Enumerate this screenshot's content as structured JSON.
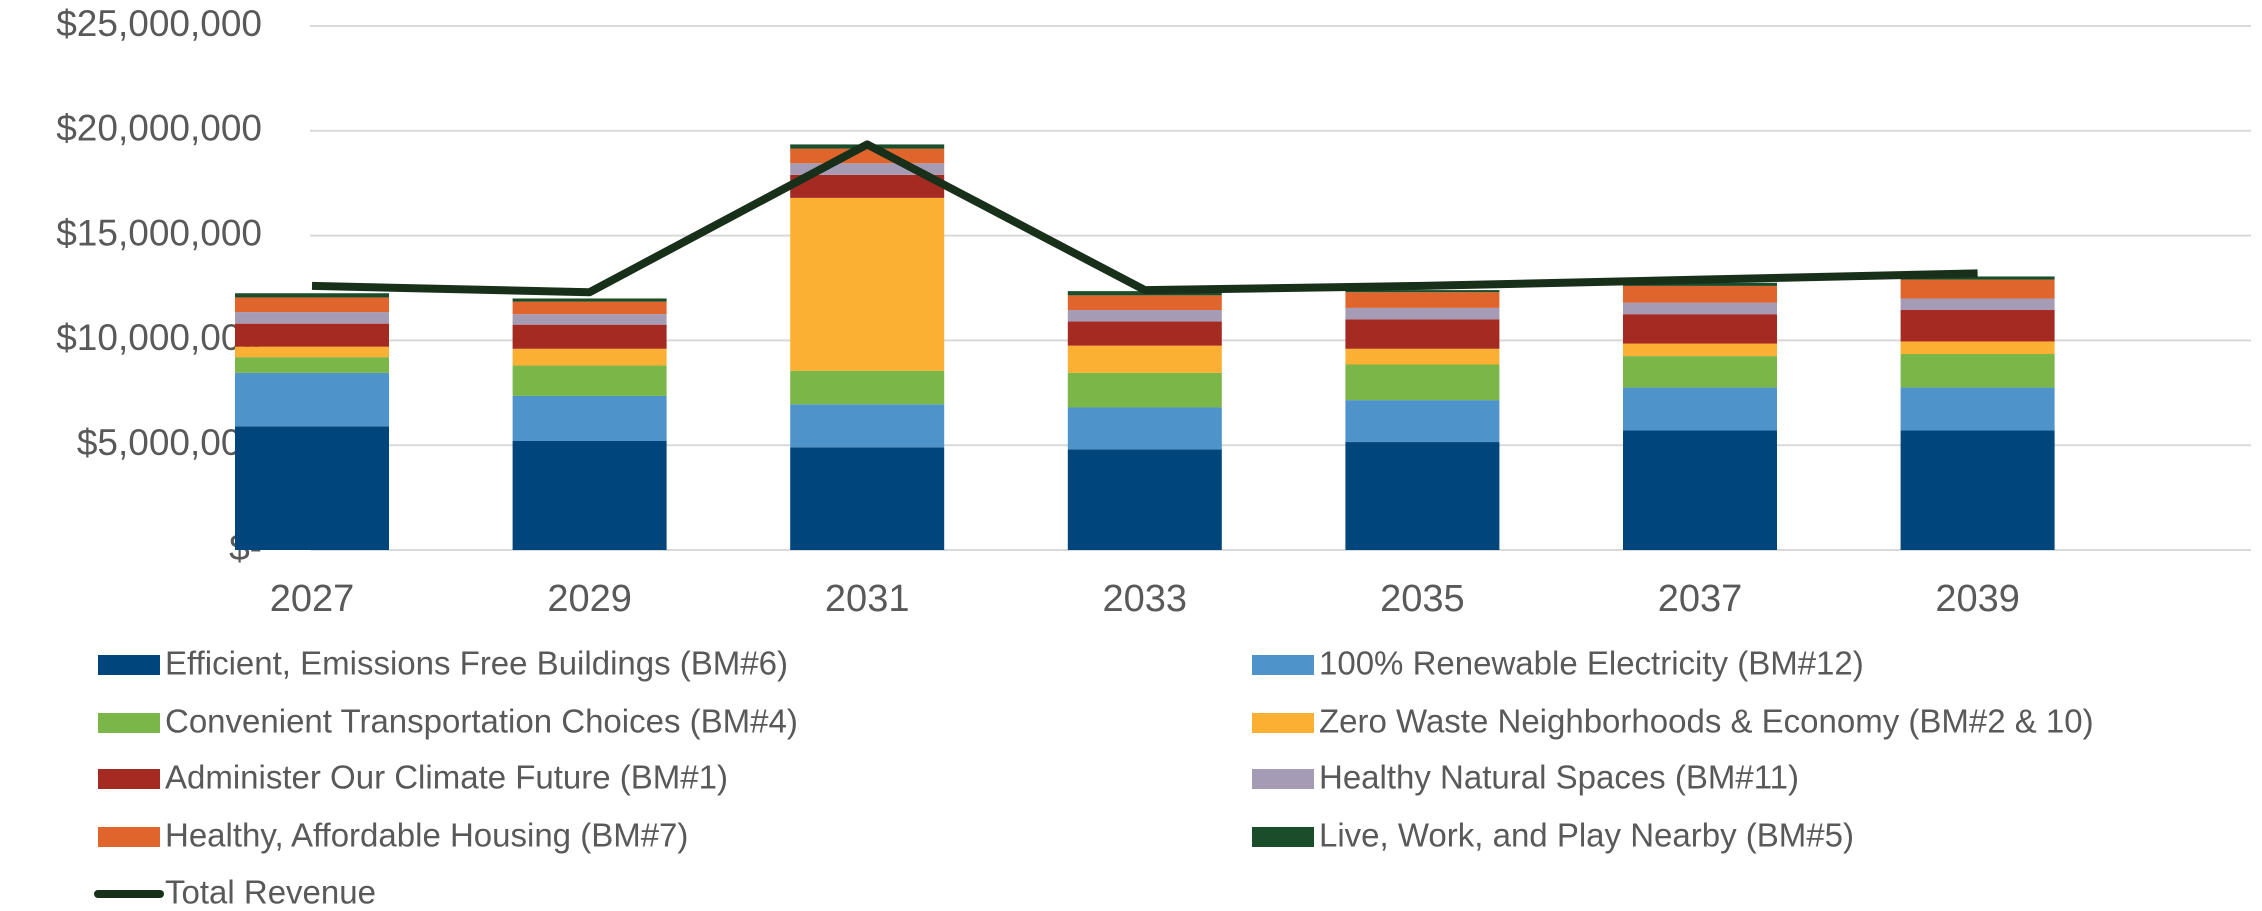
{
  "chart_data": {
    "type": "bar",
    "stacked": true,
    "categories": [
      "2027",
      "2029",
      "2031",
      "2033",
      "2035",
      "2037",
      "2039"
    ],
    "series": [
      {
        "name": "Efficient, Emissions Free Buildings (BM#6)",
        "color": "#00457c",
        "values": [
          5900000,
          5200000,
          4900000,
          4800000,
          5150000,
          5700000,
          5700000
        ]
      },
      {
        "name": "100% Renewable Electricity (BM#12)",
        "color": "#4e94cb",
        "values": [
          2550000,
          2150000,
          2050000,
          2000000,
          2000000,
          2050000,
          2050000
        ]
      },
      {
        "name": "Convenient Transportation Choices (BM#4)",
        "color": "#7ab648",
        "values": [
          750000,
          1450000,
          1600000,
          1650000,
          1700000,
          1500000,
          1600000
        ]
      },
      {
        "name": "Zero Waste Neighborhoods & Economy (BM#2 & 10)",
        "color": "#fbb034",
        "values": [
          500000,
          800000,
          8250000,
          1300000,
          750000,
          600000,
          600000
        ]
      },
      {
        "name": "Administer Our Climate Future (BM#1)",
        "color": "#a52a22",
        "values": [
          1100000,
          1150000,
          1100000,
          1150000,
          1400000,
          1400000,
          1500000
        ]
      },
      {
        "name": "Healthy Natural Spaces (BM#11)",
        "color": "#a59bb5",
        "values": [
          550000,
          500000,
          550000,
          550000,
          550000,
          550000,
          550000
        ]
      },
      {
        "name": "Healthy, Affordable Housing (BM#7)",
        "color": "#e0652d",
        "values": [
          700000,
          600000,
          700000,
          700000,
          750000,
          800000,
          900000
        ]
      },
      {
        "name": "Live, Work, and Play Nearby (BM#5)",
        "color": "#1a4d2a",
        "values": [
          200000,
          150000,
          200000,
          200000,
          100000,
          150000,
          150000
        ]
      },
      {
        "name": "Total Revenue",
        "type": "line",
        "color": "#18301a",
        "values": [
          12600000,
          12300000,
          19350000,
          12400000,
          12600000,
          12900000,
          13200000
        ]
      }
    ],
    "ylim": [
      0,
      25000000
    ],
    "yticks": [
      {
        "value": 0,
        "label": "$-"
      },
      {
        "value": 5000000,
        "label": "$5,000,000"
      },
      {
        "value": 10000000,
        "label": "$10,000,000"
      },
      {
        "value": 15000000,
        "label": "$15,000,000"
      },
      {
        "value": 20000000,
        "label": "$20,000,000"
      },
      {
        "value": 25000000,
        "label": "$25,000,000"
      }
    ],
    "grid": true,
    "legend": "bottom"
  }
}
